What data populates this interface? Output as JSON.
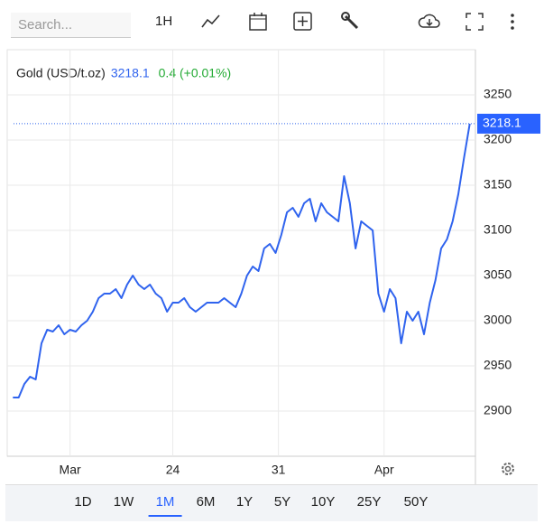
{
  "toolbar": {
    "search_placeholder": "Search...",
    "interval": "1H"
  },
  "ranges": [
    "1D",
    "1W",
    "1M",
    "6M",
    "1Y",
    "5Y",
    "10Y",
    "25Y",
    "50Y"
  ],
  "chart_data": {
    "type": "line",
    "title": "Gold (USD/t.oz)",
    "change": "0.4 (+0.01%)",
    "series": [
      {
        "name": "Gold",
        "color": "#2f63ee",
        "values": [
          2915,
          2915,
          2930,
          2938,
          2935,
          2975,
          2990,
          2988,
          2995,
          2985,
          2990,
          2988,
          2995,
          3000,
          3010,
          3025,
          3030,
          3030,
          3035,
          3025,
          3040,
          3050,
          3040,
          3035,
          3040,
          3030,
          3025,
          3010,
          3020,
          3020,
          3025,
          3015,
          3010,
          3015,
          3020,
          3020,
          3020,
          3025,
          3020,
          3015,
          3030,
          3050,
          3060,
          3055,
          3080,
          3085,
          3075,
          3095,
          3120,
          3125,
          3115,
          3130,
          3135,
          3110,
          3130,
          3120,
          3115,
          3110,
          3160,
          3130,
          3080,
          3110,
          3105,
          3100,
          3030,
          3010,
          3035,
          3025,
          2975,
          3010,
          3000,
          3010,
          2985,
          3020,
          3045,
          3080,
          3090,
          3110,
          3140,
          3180,
          3218.1
        ]
      }
    ],
    "xlim": [
      -1,
      81
    ],
    "xticks": [
      {
        "value": 10,
        "label": "Mar"
      },
      {
        "value": 28,
        "label": "24"
      },
      {
        "value": 46.5,
        "label": "31"
      },
      {
        "value": 65,
        "label": "Apr"
      }
    ],
    "ylim": [
      2850,
      3300
    ],
    "yticks": [
      2900,
      2950,
      3000,
      3050,
      3100,
      3150,
      3200,
      3250
    ],
    "grid": true
  }
}
